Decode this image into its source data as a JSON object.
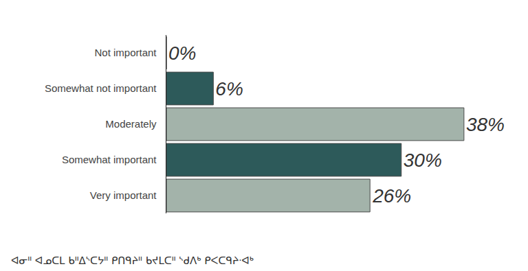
{
  "chart_data": {
    "type": "bar",
    "orientation": "horizontal",
    "categories": [
      "Not important",
      "Somewhat not important",
      "Moderately",
      "Somewhat important",
      "Very important"
    ],
    "values": [
      0,
      6,
      38,
      30,
      26
    ],
    "value_labels": [
      "0%",
      "6%",
      "38%",
      "30%",
      "26%"
    ],
    "colors": [
      "#a3b3aa",
      "#2d5a5a",
      "#a3b3aa",
      "#2d5a5a",
      "#a3b3aa"
    ],
    "xlim": [
      0,
      46
    ],
    "data_labels": true,
    "tick_labels": "y",
    "grid": false,
    "annotations": [
      "ᐊᓂᐦ ᐊᓄᑕᒪ ᑲᐦᐃᔅᑕᔭᐦ ᑭᑎᑫᔨᐦ ᑲᔪᒪᑕᐦ ᔅᑯᐱᒃ ᑭᐸᑕᑫᔨᐧᐊᒃ"
    ]
  }
}
